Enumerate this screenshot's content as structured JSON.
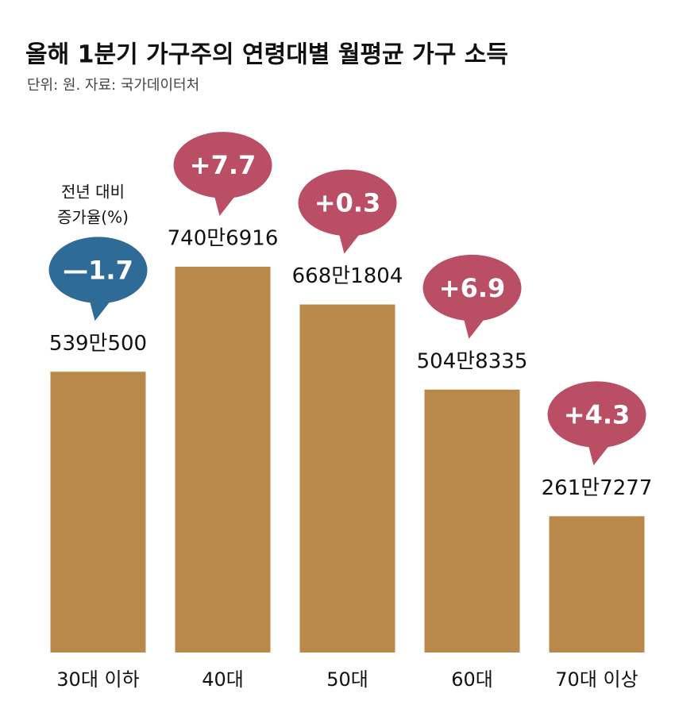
{
  "chart_data": {
    "type": "bar",
    "title": "올해 1분기 가구주의 연령대별 월평균 가구 소득",
    "subtitle": "단위: 원. 자료: 국가데이터처",
    "categories": [
      "30대 이하",
      "40대",
      "50대",
      "60대",
      "70대 이상"
    ],
    "values": [
      5390500,
      7406916,
      6681804,
      5048335,
      2617277
    ],
    "value_labels": [
      "539만500",
      "740만6916",
      "668만1804",
      "504만8335",
      "261만7277"
    ],
    "color": "#b8894a",
    "growth": {
      "label": [
        "전년 대비",
        "증가율(%)"
      ],
      "values": [
        -1.7,
        7.7,
        0.3,
        6.9,
        4.3
      ],
      "value_labels": [
        "—1.7",
        "+7.7",
        "+0.3",
        "+6.9",
        "+4.3"
      ],
      "colors": [
        "#2f6b97",
        "#b94e64",
        "#b94e64",
        "#b94e64",
        "#b94e64"
      ]
    }
  }
}
